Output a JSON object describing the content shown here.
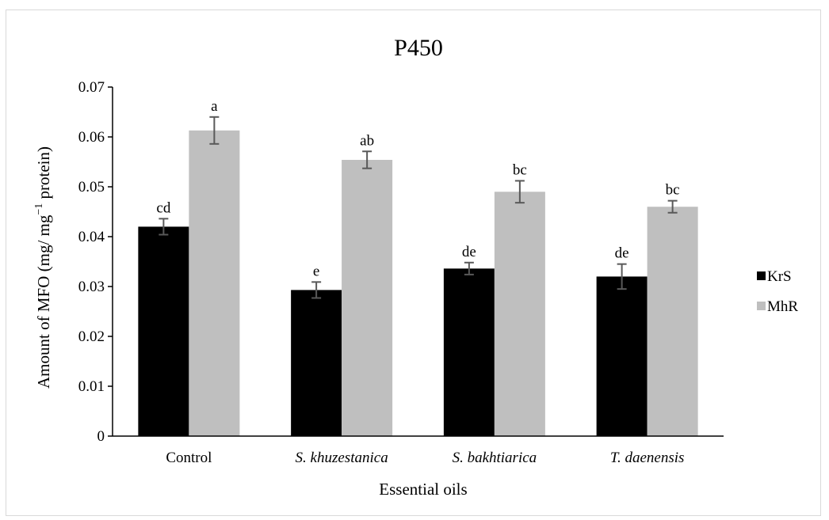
{
  "chart_data": {
    "type": "bar",
    "title": "P450",
    "xlabel": "Essential oils",
    "ylabel_main": "Amount of MFO (mg/ mg",
    "ylabel_sup": "−1",
    "ylabel_end": " protein)",
    "ylim": [
      0,
      0.07
    ],
    "yticks": [
      0,
      0.01,
      0.02,
      0.03,
      0.04,
      0.05,
      0.06,
      0.07
    ],
    "ytick_labels": [
      "0",
      "0.01",
      "0.02",
      "0.03",
      "0.04",
      "0.05",
      "0.06",
      "0.07"
    ],
    "categories": [
      "Control",
      "S. khuzestanica",
      "S. bakhtiarica",
      "T. daenensis"
    ],
    "category_italic": [
      false,
      true,
      true,
      true
    ],
    "series": [
      {
        "name": "KrS",
        "color": "#000000",
        "values": [
          0.042,
          0.0293,
          0.0336,
          0.032
        ],
        "errors": [
          0.0016,
          0.0016,
          0.0012,
          0.0025
        ],
        "labels": [
          "cd",
          "e",
          "de",
          "de"
        ]
      },
      {
        "name": "MhR",
        "color": "#bfbfbf",
        "values": [
          0.0613,
          0.0554,
          0.049,
          0.046
        ],
        "errors": [
          0.0027,
          0.0017,
          0.0022,
          0.0012
        ],
        "labels": [
          "a",
          "ab",
          "bc",
          "bc"
        ]
      }
    ],
    "legend_position": "right",
    "grid": false,
    "error_bar_color": "#595959"
  }
}
